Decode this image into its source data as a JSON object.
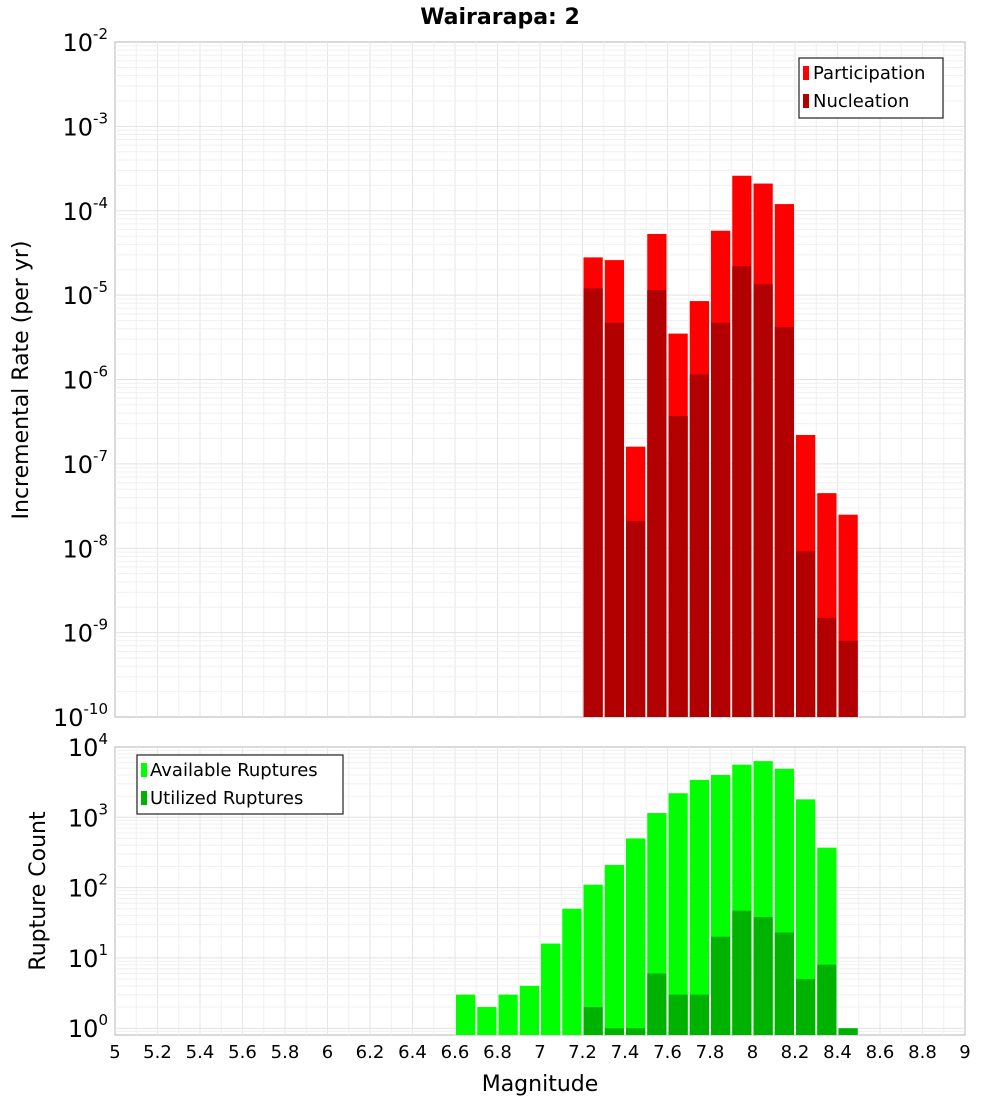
{
  "chart_data": [
    {
      "type": "bar",
      "title": "Wairarapa: 2",
      "xlabel": "",
      "ylabel": "Incremental Rate (per yr)",
      "xlim": [
        5,
        9
      ],
      "ylim": [
        1e-10,
        0.01
      ],
      "yscale": "log",
      "grid": true,
      "legend_position": "top-right",
      "bin_width": 0.1,
      "x": [
        7.25,
        7.35,
        7.45,
        7.55,
        7.65,
        7.75,
        7.85,
        7.95,
        8.05,
        8.15,
        8.25,
        8.35,
        8.45
      ],
      "series": [
        {
          "name": "Participation",
          "color": "#ff0000",
          "values": [
            2.8e-05,
            2.6e-05,
            1.6e-07,
            5.3e-05,
            3.5e-06,
            8.5e-06,
            5.8e-05,
            0.00026,
            0.00021,
            0.00012,
            2.2e-07,
            4.5e-08,
            2.5e-08
          ]
        },
        {
          "name": "Nucleation",
          "color": "#b20000",
          "values": [
            1.2e-05,
            4.7e-06,
            2.1e-08,
            1.15e-05,
            3.7e-07,
            1.15e-06,
            4.7e-06,
            2.2e-05,
            1.35e-05,
            4.2e-06,
            9.2e-09,
            1.5e-09,
            8e-10
          ]
        }
      ],
      "yticks": [
        {
          "base": "10",
          "exp": "-2"
        },
        {
          "base": "10",
          "exp": "-3"
        },
        {
          "base": "10",
          "exp": "-4"
        },
        {
          "base": "10",
          "exp": "-5"
        },
        {
          "base": "10",
          "exp": "-6"
        },
        {
          "base": "10",
          "exp": "-7"
        },
        {
          "base": "10",
          "exp": "-8"
        },
        {
          "base": "10",
          "exp": "-9"
        },
        {
          "base": "10",
          "exp": "-10"
        }
      ]
    },
    {
      "type": "bar",
      "title": "",
      "xlabel": "Magnitude",
      "ylabel": "Rupture Count",
      "xlim": [
        5,
        9
      ],
      "ylim": [
        0.8,
        10000
      ],
      "yscale": "log",
      "grid": true,
      "legend_position": "top-left",
      "bin_width": 0.1,
      "x": [
        6.65,
        6.75,
        6.85,
        6.95,
        7.05,
        7.15,
        7.25,
        7.35,
        7.45,
        7.55,
        7.65,
        7.75,
        7.85,
        7.95,
        8.05,
        8.15,
        8.25,
        8.35,
        8.45
      ],
      "series": [
        {
          "name": "Available Ruptures",
          "color": "#00ff00",
          "values": [
            3,
            2,
            3,
            4,
            16,
            50,
            110,
            210,
            500,
            1150,
            2200,
            3400,
            4000,
            5600,
            6300,
            4900,
            1800,
            370,
            null
          ]
        },
        {
          "name": "Utilized Ruptures",
          "color": "#00b200",
          "values": [
            null,
            null,
            null,
            null,
            null,
            null,
            2,
            1,
            1,
            6,
            3,
            3,
            20,
            47,
            38,
            23,
            5,
            8,
            1
          ]
        }
      ],
      "yticks": [
        {
          "base": "10",
          "exp": "4"
        },
        {
          "base": "10",
          "exp": "3"
        },
        {
          "base": "10",
          "exp": "2"
        },
        {
          "base": "10",
          "exp": "1"
        },
        {
          "base": "10",
          "exp": "0"
        }
      ],
      "xticks": [
        "5",
        "5.2",
        "5.4",
        "5.6",
        "5.8",
        "6",
        "6.2",
        "6.4",
        "6.6",
        "6.8",
        "7",
        "7.2",
        "7.4",
        "7.6",
        "7.8",
        "8",
        "8.2",
        "8.4",
        "8.6",
        "8.8",
        "9"
      ]
    }
  ]
}
